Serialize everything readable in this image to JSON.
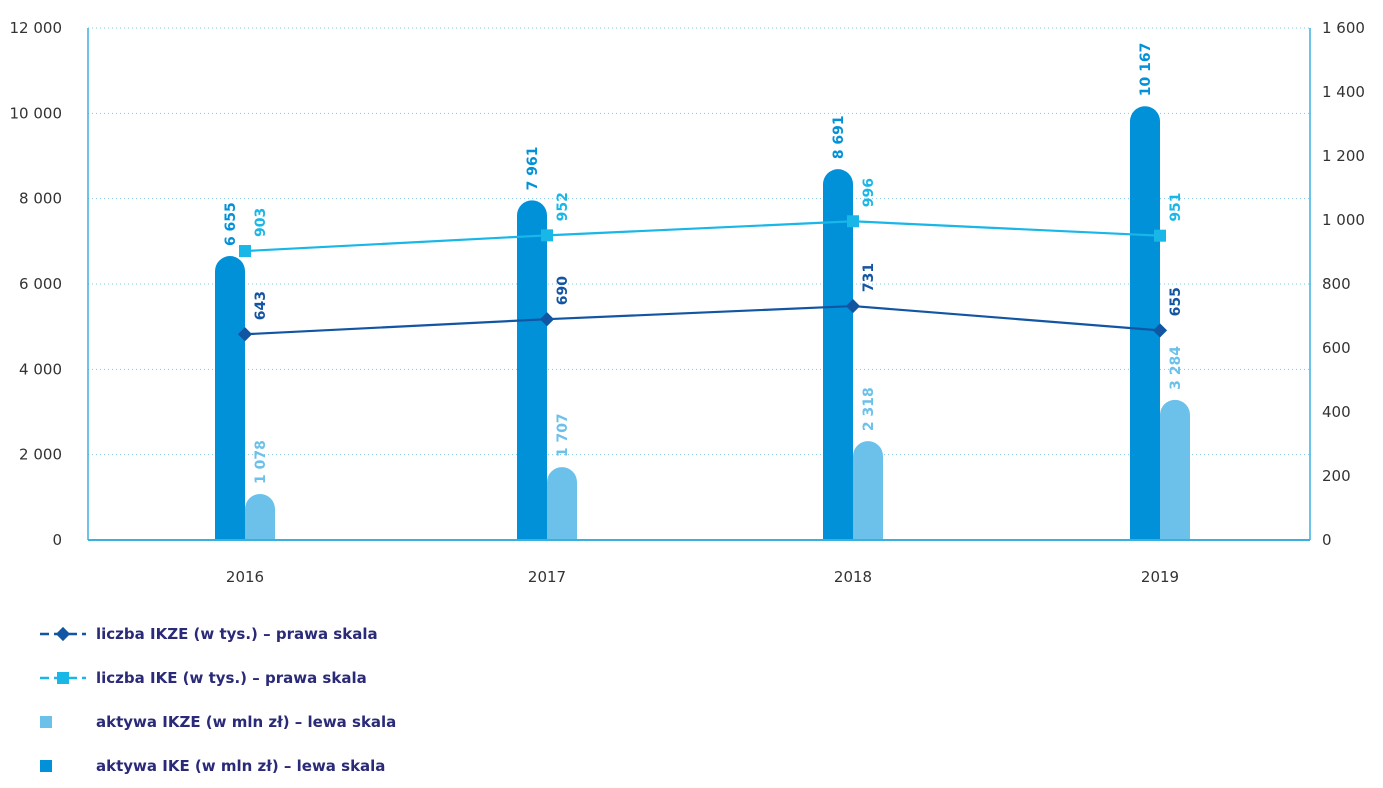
{
  "colors": {
    "ike_assets": "#0091d8",
    "ikze_assets": "#6cc1ea",
    "ikze_count": "#1255a2",
    "ike_count": "#19b6e8",
    "axis": "#3ab0e0",
    "grid": "#7fc8ea",
    "text": "#333333",
    "legend_text": "#2a2a78"
  },
  "chart_data": {
    "type": "bar",
    "categories": [
      "2016",
      "2017",
      "2018",
      "2019"
    ],
    "left_axis": {
      "ylim": [
        0,
        12000
      ],
      "ticks": [
        "0",
        "2 000",
        "4 000",
        "6 000",
        "8 000",
        "10 000",
        "12 000"
      ]
    },
    "right_axis": {
      "ylim": [
        0,
        1600
      ],
      "ticks": [
        "0",
        "200",
        "400",
        "600",
        "800",
        "1 000",
        "1 200",
        "1 400",
        "1 600"
      ]
    },
    "grid": true,
    "legend_position": "bottom-left",
    "series": [
      {
        "name": "aktywa IKE (w mln zł) – lewa skala",
        "type": "bar",
        "axis": "left",
        "color_key": "ike_assets",
        "values": [
          6655,
          7961,
          8691,
          10167
        ],
        "labels": [
          "6 655",
          "7 961",
          "8 691",
          "10 167"
        ]
      },
      {
        "name": "aktywa IKZE (w mln zł) – lewa skala",
        "type": "bar",
        "axis": "left",
        "color_key": "ikze_assets",
        "values": [
          1078,
          1707,
          2318,
          3284
        ],
        "labels": [
          "1 078",
          "1 707",
          "2 318",
          "3 284"
        ]
      },
      {
        "name": "liczba IKZE (w tys.) – prawa skala",
        "type": "line",
        "marker": "diamond",
        "axis": "right",
        "color_key": "ikze_count",
        "values": [
          643,
          690,
          731,
          655
        ],
        "labels": [
          "643",
          "690",
          "731",
          "655"
        ]
      },
      {
        "name": "liczba IKE (w tys.) – prawa skala",
        "type": "line",
        "marker": "square",
        "axis": "right",
        "color_key": "ike_count",
        "values": [
          903,
          952,
          996,
          951
        ],
        "labels": [
          "903",
          "952",
          "996",
          "951"
        ]
      }
    ]
  },
  "legend": [
    {
      "label": "liczba IKZE (w tys.) – prawa skala",
      "symbol": "line-diamond",
      "color_key": "ikze_count"
    },
    {
      "label": "liczba IKE (w tys.) – prawa skala",
      "symbol": "line-square",
      "color_key": "ike_count"
    },
    {
      "label": "aktywa IKZE (w mln zł) – lewa skala",
      "symbol": "square",
      "color_key": "ikze_assets"
    },
    {
      "label": "aktywa IKE (w mln zł) – lewa skala",
      "symbol": "square",
      "color_key": "ike_assets"
    }
  ]
}
